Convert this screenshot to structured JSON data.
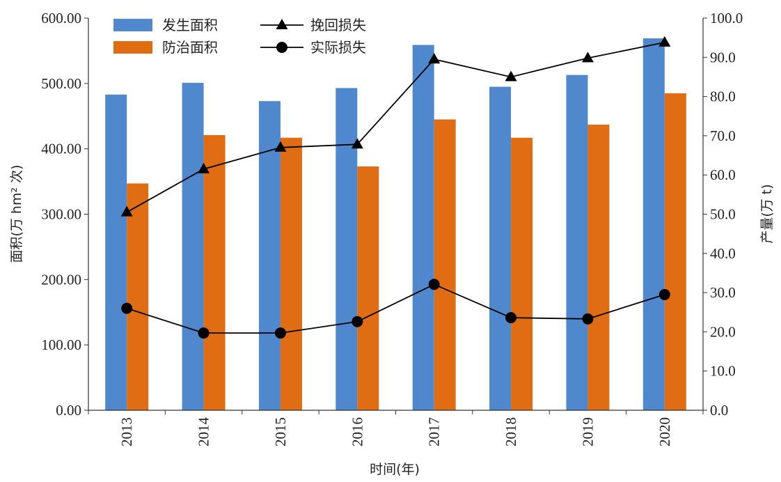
{
  "chart_data": {
    "type": "bar",
    "title": "",
    "xlabel": "时间(年)",
    "ylabel_left": "面积(万 hm² 次)",
    "ylabel_right": "产量(万 t)",
    "categories": [
      "2013",
      "2014",
      "2015",
      "2016",
      "2017",
      "2018",
      "2019",
      "2020"
    ],
    "ylim_left": [
      0,
      600
    ],
    "ylim_right": [
      0,
      100
    ],
    "yticks_left": [
      "0.00",
      "100.00",
      "200.00",
      "300.00",
      "400.00",
      "500.00",
      "600.00"
    ],
    "yticks_right": [
      "0.0",
      "10.0",
      "20.0",
      "30.0",
      "40.0",
      "50.0",
      "60.0",
      "70.0",
      "80.0",
      "90.0",
      "100.0"
    ],
    "bar_series": [
      {
        "name": "发生面积",
        "color": "#4f88cc",
        "axis": "left",
        "values": [
          483,
          501,
          473,
          493,
          559,
          495,
          513,
          569
        ]
      },
      {
        "name": "防治面积",
        "color": "#e06c14",
        "axis": "left",
        "values": [
          347,
          421,
          417,
          373,
          445,
          417,
          437,
          485
        ]
      }
    ],
    "line_series": [
      {
        "name": "挽回损失",
        "marker": "triangle",
        "color": "#000000",
        "axis": "right",
        "values": [
          50.5,
          61.5,
          67.0,
          67.8,
          89.5,
          85.0,
          89.8,
          93.8
        ]
      },
      {
        "name": "实际损失",
        "marker": "circle",
        "color": "#000000",
        "axis": "right",
        "values": [
          26.0,
          19.7,
          19.7,
          22.6,
          32.1,
          23.6,
          23.3,
          29.5
        ]
      }
    ],
    "grid": false,
    "legend_position": "top-left"
  }
}
